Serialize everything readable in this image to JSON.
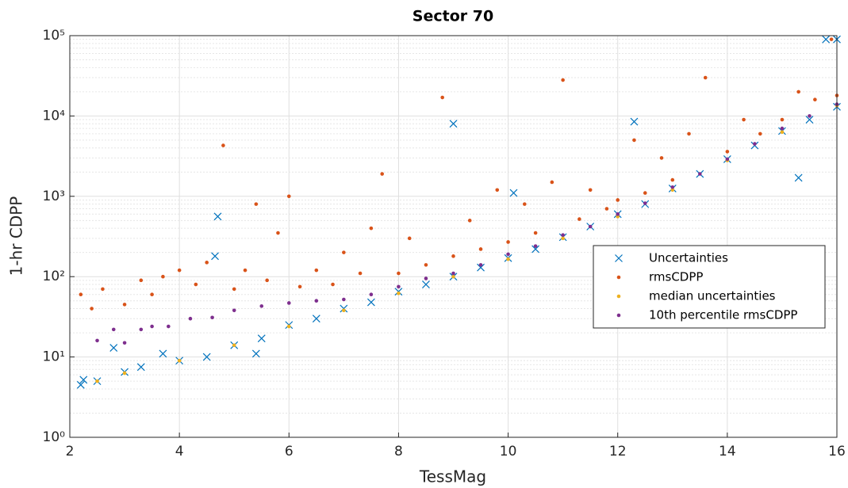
{
  "chart_data": {
    "type": "scatter",
    "title": "Sector 70",
    "x_label": "TessMag",
    "y_label": "1-hr CDPP",
    "xlim": [
      2,
      16
    ],
    "xticks": [
      2,
      4,
      6,
      8,
      10,
      12,
      14,
      16
    ],
    "ylim": [
      1,
      100000
    ],
    "y_scale": "log",
    "grid": true,
    "minor_grid": true,
    "yticks": [
      {
        "value": 1,
        "label": "10⁰"
      },
      {
        "value": 10,
        "label": "10¹"
      },
      {
        "value": 100,
        "label": "10²"
      },
      {
        "value": 1000,
        "label": "10³"
      },
      {
        "value": 10000,
        "label": "10⁴"
      },
      {
        "value": 100000,
        "label": "10⁵"
      }
    ],
    "legend_position": "right",
    "series": [
      {
        "name": "Uncertainties",
        "color": "#0072bd",
        "marker": "x",
        "x": [
          2.2,
          2.25,
          2.5,
          2.8,
          3,
          3.3,
          3.7,
          4,
          4.5,
          4.65,
          4.7,
          5,
          5.4,
          5.5,
          6,
          6.5,
          7,
          7.5,
          8,
          8.5,
          9,
          9,
          9.5,
          10,
          10.1,
          10.5,
          11,
          11.5,
          12,
          12.3,
          12.5,
          13,
          13.5,
          14,
          14.5,
          15,
          15.3,
          15.5,
          15.8,
          16,
          16
        ],
        "y": [
          4.5,
          5.2,
          5,
          13,
          6.5,
          7.5,
          11,
          9,
          10,
          180,
          560,
          14,
          11,
          17,
          25,
          30,
          40,
          48,
          65,
          80,
          100,
          8000,
          130,
          170,
          1100,
          220,
          310,
          420,
          600,
          8500,
          800,
          1250,
          1900,
          2900,
          4300,
          6500,
          1700,
          9000,
          90000,
          90000,
          13000
        ]
      },
      {
        "name": "rmsCDPP",
        "color": "#d95319",
        "marker": "dot",
        "x": [
          2.2,
          2.4,
          2.6,
          3,
          3.3,
          3.5,
          3.7,
          4,
          4.3,
          4.5,
          4.8,
          5,
          5.2,
          5.4,
          5.6,
          5.8,
          6,
          6.2,
          6.5,
          6.8,
          7,
          7.3,
          7.5,
          7.7,
          8,
          8.2,
          8.5,
          8.8,
          9,
          9.3,
          9.5,
          9.8,
          10,
          10.3,
          10.5,
          10.8,
          11,
          11.3,
          11.5,
          11.8,
          12,
          12.3,
          12.5,
          12.8,
          13,
          13.3,
          13.6,
          14,
          14.3,
          14.6,
          15,
          15.3,
          15.6,
          15.9,
          16
        ],
        "y": [
          60,
          40,
          70,
          45,
          90,
          60,
          100,
          120,
          80,
          150,
          4300,
          70,
          120,
          800,
          90,
          350,
          1000,
          75,
          120,
          80,
          200,
          110,
          400,
          1900,
          110,
          300,
          140,
          17000,
          180,
          500,
          220,
          1200,
          270,
          800,
          350,
          1500,
          28000,
          520,
          1200,
          700,
          900,
          5000,
          1100,
          3000,
          1600,
          6000,
          30000,
          3600,
          9000,
          6000,
          9000,
          20000,
          16000,
          90000,
          18000
        ]
      },
      {
        "name": "median uncertainties",
        "color": "#edb120",
        "marker": "dot",
        "x": [
          2.5,
          3,
          4,
          5,
          6,
          7,
          8,
          9,
          10,
          11,
          12,
          13,
          14,
          15,
          16
        ],
        "y": [
          5,
          6.3,
          9,
          14,
          24,
          38,
          62,
          100,
          165,
          300,
          560,
          1200,
          2800,
          6300,
          13500
        ]
      },
      {
        "name": "10th percentile rmsCDPP",
        "color": "#7e2f8e",
        "marker": "dot",
        "x": [
          2.5,
          2.8,
          3,
          3.3,
          3.5,
          3.8,
          4.2,
          4.6,
          5,
          5.5,
          6,
          6.5,
          7,
          7.5,
          8,
          8.5,
          9,
          9.5,
          10,
          10.5,
          11,
          11.5,
          12,
          12.5,
          13,
          13.5,
          14,
          14.5,
          15,
          15.5,
          16
        ],
        "y": [
          16,
          22,
          15,
          22,
          24,
          24,
          30,
          31,
          38,
          43,
          47,
          50,
          52,
          60,
          75,
          95,
          110,
          140,
          190,
          240,
          330,
          420,
          600,
          820,
          1300,
          1900,
          2900,
          4500,
          7000,
          10000,
          14000
        ]
      }
    ]
  }
}
